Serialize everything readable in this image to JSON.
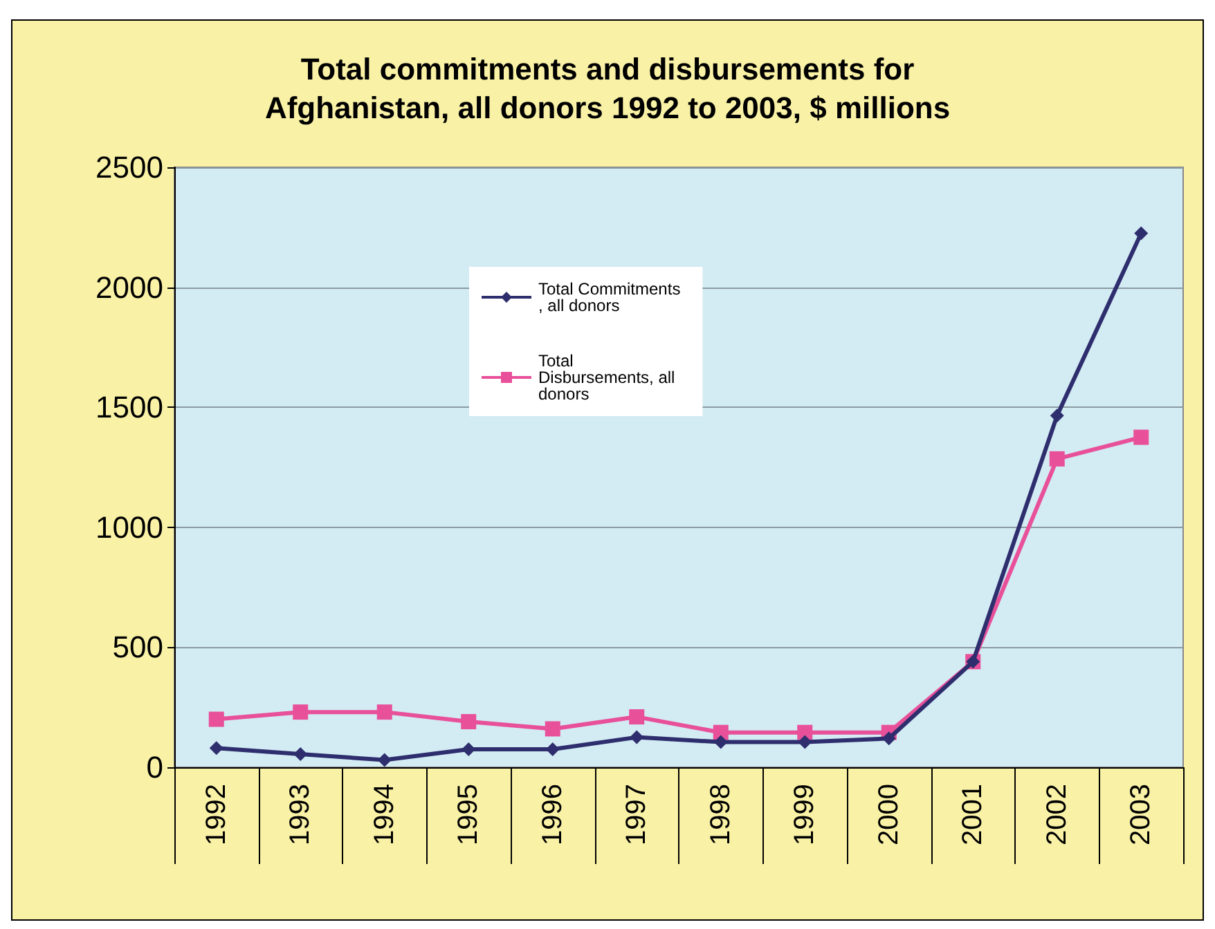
{
  "chart_data": {
    "type": "line",
    "title": "Total commitments and disbursements for\nAfghanistan, all donors 1992 to 2003, $ millions",
    "categories": [
      "1992",
      "1993",
      "1994",
      "1995",
      "1996",
      "1997",
      "1998",
      "1999",
      "2000",
      "2001",
      "2002",
      "2003"
    ],
    "series": [
      {
        "name": "Total Commitments, all donors",
        "color": "#2e2e6e",
        "marker": "diamond",
        "values": [
          80,
          55,
          30,
          75,
          75,
          125,
          105,
          105,
          120,
          440,
          1465,
          2225
        ]
      },
      {
        "name": "Total Disbursements, all donors",
        "color": "#e8509a",
        "marker": "square",
        "values": [
          200,
          230,
          230,
          190,
          160,
          210,
          145,
          145,
          145,
          440,
          1285,
          1375
        ]
      }
    ],
    "ylim": [
      0,
      2500
    ],
    "yticks": [
      0,
      500,
      1000,
      1500,
      2000,
      2500
    ],
    "grid": "y",
    "legend": "top",
    "line_style": "solid"
  }
}
